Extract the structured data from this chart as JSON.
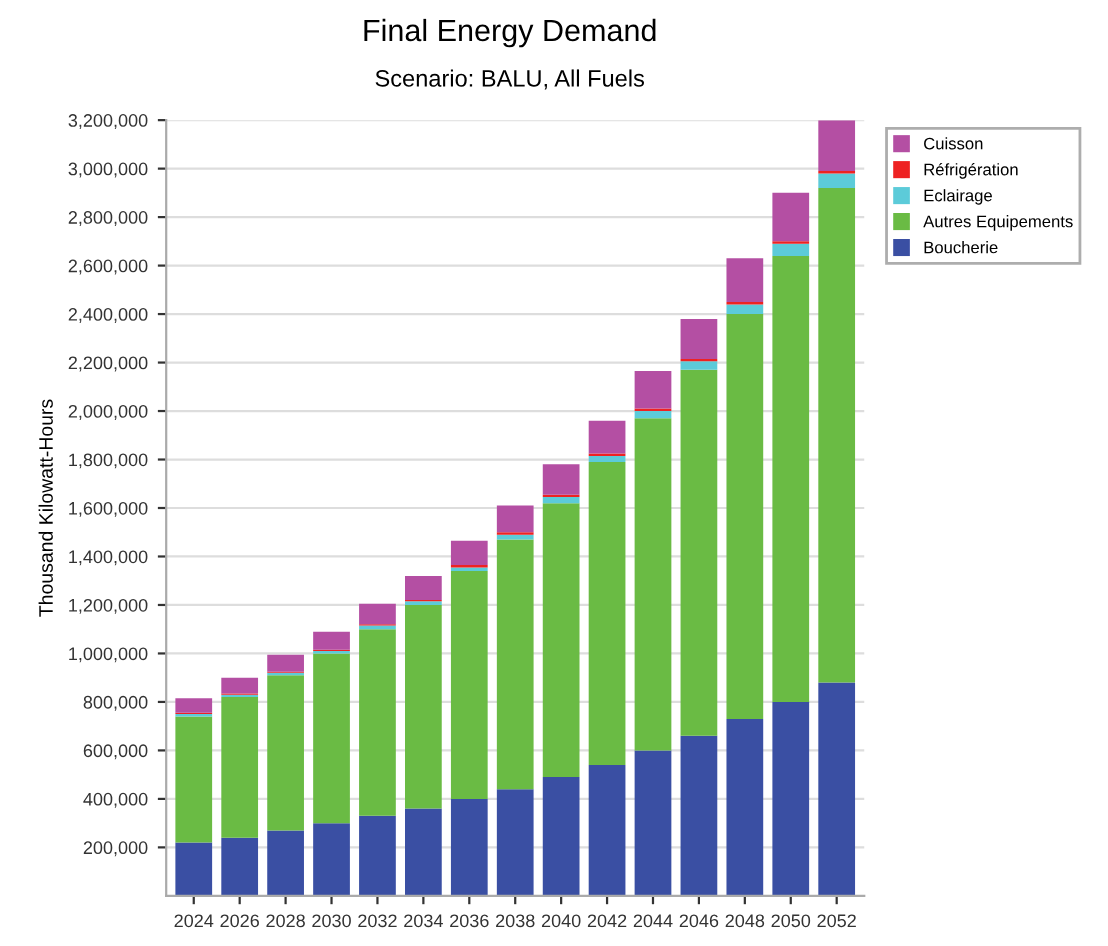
{
  "chart_data": {
    "type": "bar",
    "title": "Final Energy Demand",
    "subtitle": "Scenario: BALU, All Fuels",
    "ylabel": "Thousand Kilowatt-Hours",
    "categories": [
      "2024",
      "2026",
      "2028",
      "2030",
      "2032",
      "2034",
      "2036",
      "2038",
      "2040",
      "2042",
      "2044",
      "2046",
      "2048",
      "2050",
      "2052"
    ],
    "stacked": true,
    "series": [
      {
        "name": "Boucherie",
        "color": "#3a4fa3",
        "values": [
          220000,
          240000,
          270000,
          300000,
          330000,
          360000,
          400000,
          440000,
          490000,
          540000,
          600000,
          660000,
          730000,
          800000,
          880000
        ]
      },
      {
        "name": "Autres Equipements",
        "color": "#6abb44",
        "values": [
          520000,
          580000,
          640000,
          700000,
          770000,
          840000,
          940000,
          1030000,
          1130000,
          1250000,
          1370000,
          1510000,
          1670000,
          1840000,
          2040000
        ]
      },
      {
        "name": "Eclairage",
        "color": "#5ccbd9",
        "values": [
          10000,
          10000,
          10000,
          10000,
          15000,
          15000,
          15000,
          20000,
          25000,
          25000,
          30000,
          35000,
          40000,
          50000,
          60000
        ]
      },
      {
        "name": "Réfrigération",
        "color": "#ee2222",
        "values": [
          5000,
          5000,
          5000,
          5000,
          5000,
          5000,
          10000,
          10000,
          10000,
          10000,
          10000,
          10000,
          10000,
          10000,
          10000
        ]
      },
      {
        "name": "Cuisson",
        "color": "#b44fa3",
        "values": [
          60000,
          65000,
          70000,
          75000,
          85000,
          100000,
          100000,
          110000,
          125000,
          135000,
          155000,
          165000,
          180000,
          200000,
          210000
        ]
      }
    ],
    "ylim": [
      0,
      3200000
    ],
    "yticks": [
      {
        "value": 200000,
        "label": "200,000"
      },
      {
        "value": 400000,
        "label": "400,000"
      },
      {
        "value": 600000,
        "label": "600,000"
      },
      {
        "value": 800000,
        "label": "800,000"
      },
      {
        "value": 1000000,
        "label": "1,000,000"
      },
      {
        "value": 1200000,
        "label": "1,200,000"
      },
      {
        "value": 1400000,
        "label": "1,400,000"
      },
      {
        "value": 1600000,
        "label": "1,600,000"
      },
      {
        "value": 1800000,
        "label": "1,800,000"
      },
      {
        "value": 2000000,
        "label": "2,000,000"
      },
      {
        "value": 2200000,
        "label": "2,200,000"
      },
      {
        "value": 2400000,
        "label": "2,400,000"
      },
      {
        "value": 2600000,
        "label": "2,600,000"
      },
      {
        "value": 2800000,
        "label": "2,800,000"
      },
      {
        "value": 3000000,
        "label": "3,000,000"
      },
      {
        "value": 3200000,
        "label": "3,200,000"
      }
    ],
    "grid": "y",
    "legend": "top right"
  }
}
